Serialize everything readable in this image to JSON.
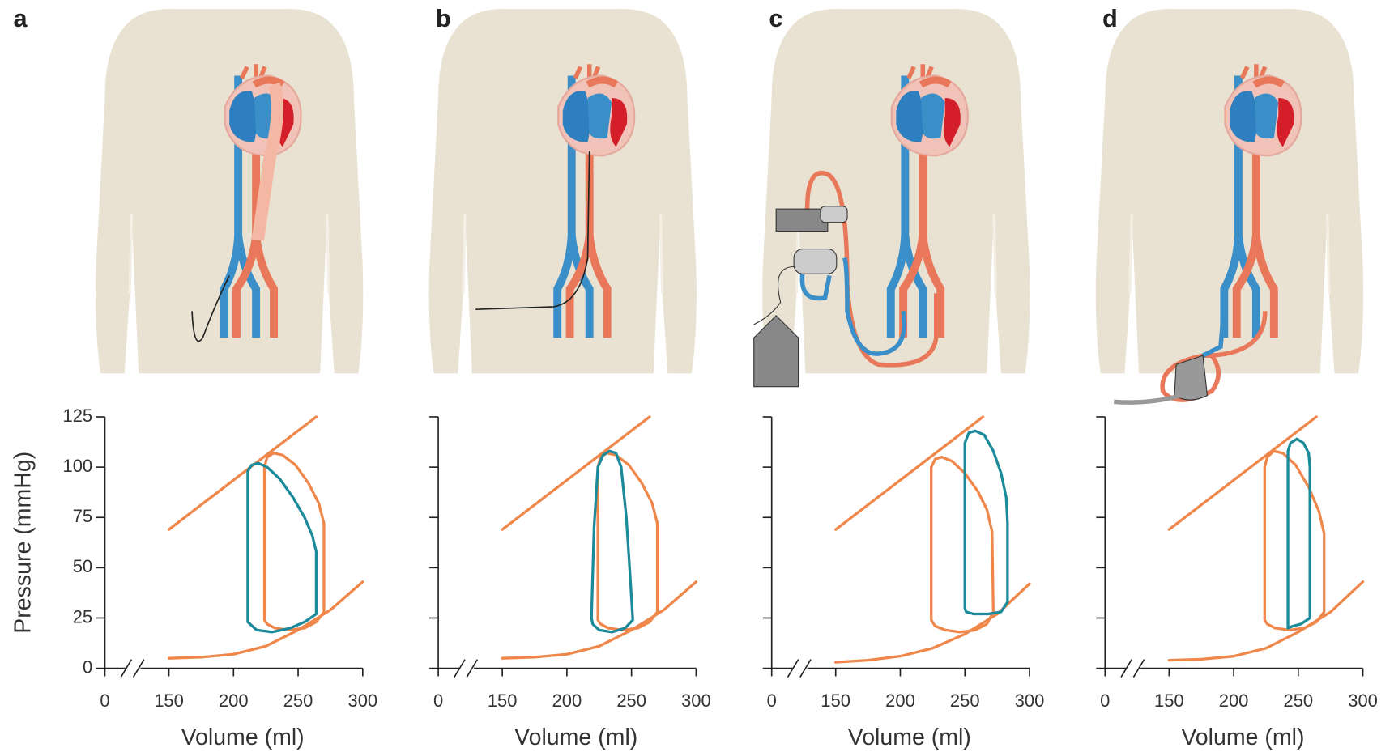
{
  "chart_data": [
    {
      "type": "line",
      "title": "a",
      "xlabel": "Volume (ml)",
      "ylabel": "Pressure (mmHg)",
      "xlim": [
        0,
        300
      ],
      "ylim": [
        0,
        125
      ],
      "xticks": [
        0,
        150,
        200,
        250,
        300
      ],
      "yticks": [
        0,
        25,
        50,
        75,
        100,
        125
      ],
      "show_ytick_labels": true,
      "x_axis_break": true,
      "series": [
        {
          "color": "#f0874a",
          "x": [
            150,
            264
          ],
          "values": [
            69,
            125
          ]
        },
        {
          "color": "#f0874a",
          "x": [
            150,
            175,
            200,
            225,
            250,
            275,
            300
          ],
          "values": [
            5,
            5.5,
            7,
            11,
            19,
            29,
            43
          ]
        },
        {
          "color": "#f0874a",
          "x": [
            224,
            224,
            226,
            231,
            238,
            248,
            258,
            266,
            270,
            270,
            264,
            255,
            243,
            232,
            226,
            224
          ],
          "values": [
            24,
            100,
            105,
            107,
            106,
            101,
            92,
            82,
            72,
            28,
            23,
            20,
            19,
            20,
            22,
            24
          ]
        },
        {
          "color": "#1b8a9a",
          "x": [
            211,
            211,
            214,
            219,
            226,
            236,
            246,
            255,
            261,
            264,
            264,
            255,
            244,
            230,
            218,
            211
          ],
          "values": [
            23,
            98,
            101,
            102,
            100,
            94,
            85,
            75,
            66,
            58,
            27,
            23,
            20,
            18,
            19,
            23
          ]
        }
      ]
    },
    {
      "type": "line",
      "title": "b",
      "xlabel": "Volume (ml)",
      "xlim": [
        0,
        300
      ],
      "ylim": [
        0,
        125
      ],
      "xticks": [
        0,
        150,
        200,
        250,
        300
      ],
      "yticks": [
        0,
        25,
        50,
        75,
        100,
        125
      ],
      "show_ytick_labels": false,
      "x_axis_break": true,
      "series": [
        {
          "color": "#f0874a",
          "x": [
            150,
            264
          ],
          "values": [
            69,
            125
          ]
        },
        {
          "color": "#f0874a",
          "x": [
            150,
            175,
            200,
            225,
            250,
            275,
            300
          ],
          "values": [
            5,
            5.5,
            7,
            11,
            19,
            29,
            43
          ]
        },
        {
          "color": "#f0874a",
          "x": [
            224,
            224,
            226,
            231,
            238,
            248,
            258,
            266,
            270,
            270,
            264,
            255,
            243,
            232,
            226,
            224
          ],
          "values": [
            24,
            100,
            105,
            107,
            106,
            101,
            92,
            82,
            72,
            28,
            23,
            20,
            19,
            20,
            22,
            24
          ]
        },
        {
          "color": "#1b8a9a",
          "x": [
            219,
            221,
            224,
            228,
            233,
            238,
            242,
            246,
            249,
            251,
            245,
            235,
            225,
            220,
            219
          ],
          "values": [
            25,
            70,
            100,
            106,
            108,
            107,
            100,
            75,
            45,
            24,
            20,
            18,
            19,
            22,
            25
          ]
        }
      ]
    },
    {
      "type": "line",
      "title": "c",
      "xlabel": "Volume (ml)",
      "xlim": [
        0,
        300
      ],
      "ylim": [
        0,
        125
      ],
      "xticks": [
        0,
        150,
        200,
        250,
        300
      ],
      "yticks": [
        0,
        25,
        50,
        75,
        100,
        125
      ],
      "show_ytick_labels": false,
      "x_axis_break": true,
      "series": [
        {
          "color": "#f0874a",
          "x": [
            150,
            264
          ],
          "values": [
            69,
            125
          ]
        },
        {
          "color": "#f0874a",
          "x": [
            150,
            175,
            200,
            225,
            250,
            275,
            300
          ],
          "values": [
            3,
            4,
            6,
            10,
            17,
            27,
            42
          ]
        },
        {
          "color": "#f0874a",
          "x": [
            224,
            224,
            227,
            232,
            240,
            250,
            260,
            267,
            271,
            272,
            267,
            258,
            246,
            235,
            227,
            224
          ],
          "values": [
            24,
            100,
            104,
            105,
            103,
            97,
            88,
            79,
            68,
            28,
            22,
            19,
            18,
            19,
            21,
            24
          ]
        },
        {
          "color": "#1b8a9a",
          "x": [
            250,
            250,
            253,
            258,
            265,
            272,
            278,
            282,
            283,
            283,
            278,
            268,
            257,
            251,
            250
          ],
          "values": [
            30,
            112,
            117,
            118,
            116,
            108,
            97,
            85,
            72,
            33,
            28,
            27,
            27,
            28,
            30
          ]
        }
      ]
    },
    {
      "type": "line",
      "title": "d",
      "xlabel": "Volume (ml)",
      "xlim": [
        0,
        300
      ],
      "ylim": [
        0,
        125
      ],
      "xticks": [
        0,
        150,
        200,
        250,
        300
      ],
      "yticks": [
        0,
        25,
        50,
        75,
        100,
        125
      ],
      "show_ytick_labels": false,
      "x_axis_break": true,
      "series": [
        {
          "color": "#f0874a",
          "x": [
            150,
            264
          ],
          "values": [
            69,
            125
          ]
        },
        {
          "color": "#f0874a",
          "x": [
            150,
            175,
            200,
            225,
            250,
            275,
            300
          ],
          "values": [
            4,
            4.5,
            6,
            10,
            18,
            28,
            43
          ]
        },
        {
          "color": "#f0874a",
          "x": [
            224,
            224,
            226,
            231,
            238,
            248,
            258,
            266,
            270,
            270,
            264,
            255,
            243,
            232,
            226,
            224
          ],
          "values": [
            24,
            100,
            105,
            108,
            107,
            101,
            90,
            78,
            67,
            28,
            23,
            20,
            19,
            20,
            22,
            24
          ]
        },
        {
          "color": "#1b8a9a",
          "x": [
            242,
            242,
            244,
            249,
            254,
            258,
            259,
            259,
            252,
            246,
            242
          ],
          "values": [
            20,
            108,
            112,
            114,
            112,
            107,
            100,
            25,
            22,
            21,
            20
          ]
        }
      ]
    }
  ]
}
